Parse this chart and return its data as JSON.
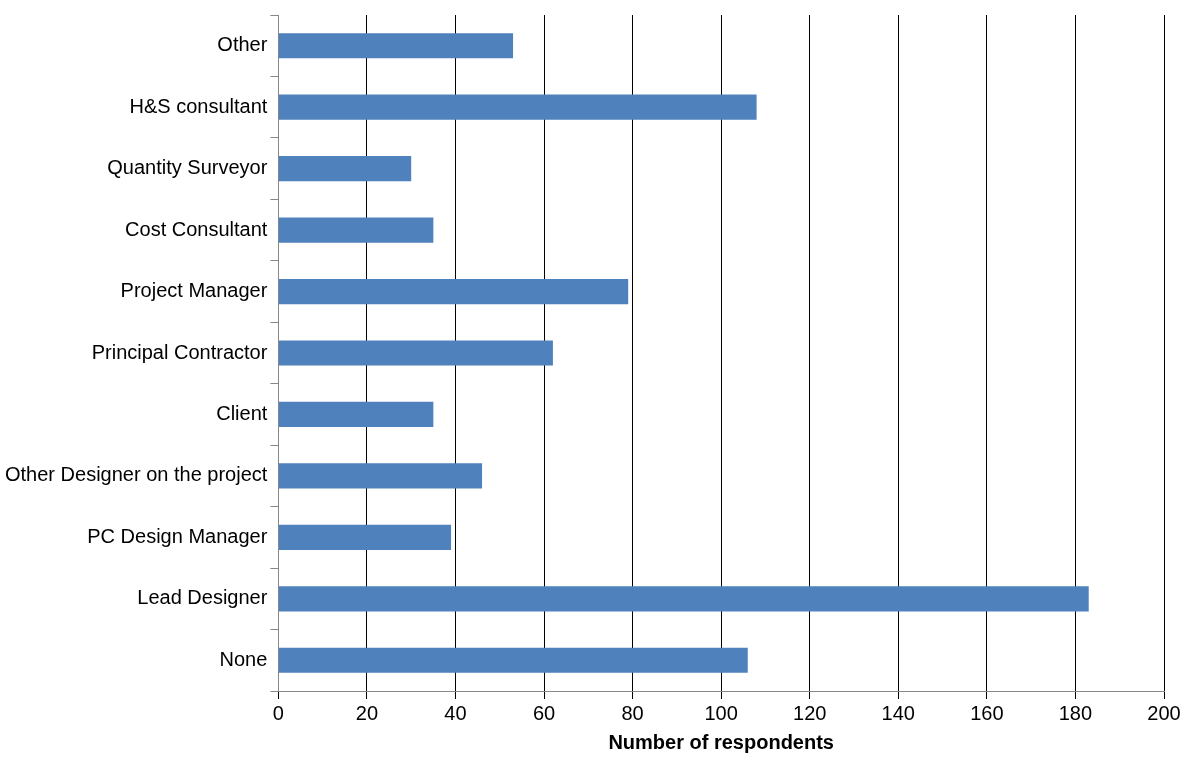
{
  "chart_data": {
    "type": "bar",
    "orientation": "horizontal",
    "xlabel": "Number of respondents",
    "categories": [
      "Other",
      "H&S consultant",
      "Quantity Surveyor",
      "Cost Consultant",
      "Project Manager",
      "Principal Contractor",
      "Client",
      "Other Designer on the project",
      "PC Design Manager",
      "Lead Designer",
      "None"
    ],
    "values": [
      53,
      108,
      30,
      35,
      79,
      62,
      35,
      46,
      39,
      183,
      106
    ],
    "color": "#4f81bd",
    "xlim": [
      0,
      200
    ],
    "xticks": [
      0,
      20,
      40,
      60,
      80,
      100,
      120,
      140,
      160,
      180,
      200
    ],
    "grid": "x",
    "legend": false
  }
}
